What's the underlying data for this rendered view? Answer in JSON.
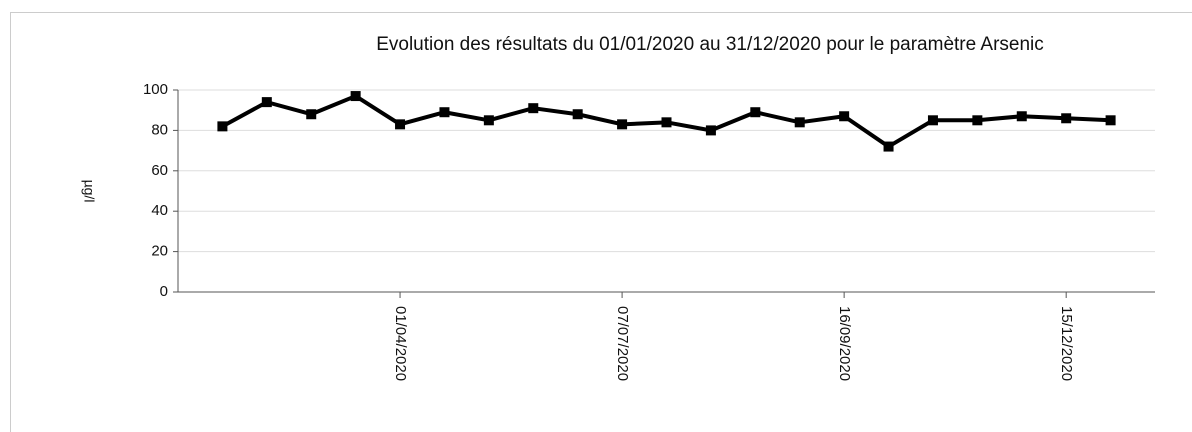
{
  "chart_data": {
    "type": "line",
    "title": "Evolution des résultats du 01/01/2020 au 31/12/2020 pour le paramètre Arsenic",
    "y_label": "µg/l",
    "categories": [
      null,
      null,
      null,
      null,
      "01/04/2020",
      null,
      null,
      null,
      null,
      "07/07/2020",
      null,
      null,
      null,
      null,
      "16/09/2020",
      null,
      null,
      null,
      null,
      "15/12/2020",
      null
    ],
    "series": [
      {
        "name": "Arsenic",
        "color": "#000000",
        "values": [
          82,
          94,
          88,
          97,
          83,
          89,
          85,
          91,
          88,
          83,
          84,
          80,
          89,
          84,
          87,
          72,
          85,
          85,
          87,
          86,
          85
        ]
      }
    ],
    "ylim": [
      0,
      100
    ],
    "yticks": [
      0,
      20,
      40,
      60,
      80,
      100
    ],
    "grid": true
  }
}
